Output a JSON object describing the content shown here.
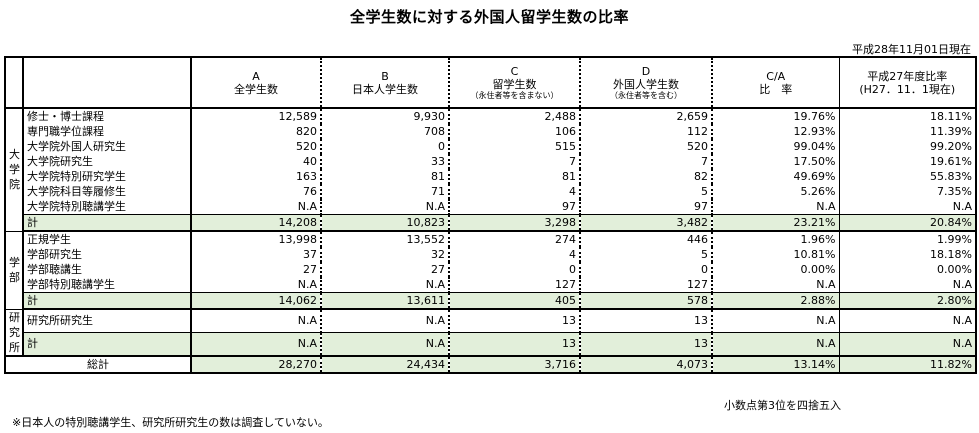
{
  "title": "全学生数に対する外国人留学生数の比率",
  "as_of": "平成28年11月01日現在",
  "rounding_note": "小数点第3位を四捨五入",
  "footnote": "※日本人の特別聴講学生、研究所研究生の数は調査していない。",
  "colors": {
    "total_fill": "#e2efda"
  },
  "chart_data": {
    "type": "table",
    "title": "全学生数に対する外国人留学生数の比率",
    "columns": [
      {
        "code": "A",
        "name": "全学生数",
        "sub": ""
      },
      {
        "code": "B",
        "name": "日本人学生数",
        "sub": ""
      },
      {
        "code": "C",
        "name": "留学生数",
        "sub": "（永住者等を含まない）"
      },
      {
        "code": "D",
        "name": "外国人学生数",
        "sub": "（永住者等を含む）"
      },
      {
        "code": "C/A",
        "name": "比　率",
        "sub": ""
      },
      {
        "code": "平成27年度比率",
        "name": "(H27．11．1現在)",
        "sub": ""
      }
    ],
    "groups": [
      {
        "label": [
          "大",
          "学",
          "院"
        ],
        "rows": [
          {
            "name": "修士・博士課程",
            "values": [
              "12,589",
              "9,930",
              "2,488",
              "2,659",
              "19.76%",
              "18.11%"
            ]
          },
          {
            "name": "専門職学位課程",
            "values": [
              "820",
              "708",
              "106",
              "112",
              "12.93%",
              "11.39%"
            ]
          },
          {
            "name": "大学院外国人研究生",
            "values": [
              "520",
              "0",
              "515",
              "520",
              "99.04%",
              "99.20%"
            ]
          },
          {
            "name": "大学院研究生",
            "values": [
              "40",
              "33",
              "7",
              "7",
              "17.50%",
              "19.61%"
            ]
          },
          {
            "name": "大学院特別研究学生",
            "values": [
              "163",
              "81",
              "81",
              "82",
              "49.69%",
              "55.83%"
            ]
          },
          {
            "name": "大学院科目等履修生",
            "values": [
              "76",
              "71",
              "4",
              "5",
              "5.26%",
              "7.35%"
            ]
          },
          {
            "name": "大学院特別聴講学生",
            "values": [
              "N.A",
              "N.A",
              "97",
              "97",
              "N.A",
              "N.A"
            ]
          }
        ],
        "total": {
          "name": "計",
          "values": [
            "14,208",
            "10,823",
            "3,298",
            "3,482",
            "23.21%",
            "20.84%"
          ]
        }
      },
      {
        "label": [
          "学",
          "部"
        ],
        "rows": [
          {
            "name": "正規学生",
            "values": [
              "13,998",
              "13,552",
              "274",
              "446",
              "1.96%",
              "1.99%"
            ]
          },
          {
            "name": "学部研究生",
            "values": [
              "37",
              "32",
              "4",
              "5",
              "10.81%",
              "18.18%"
            ]
          },
          {
            "name": "学部聴講生",
            "values": [
              "27",
              "27",
              "0",
              "0",
              "0.00%",
              "0.00%"
            ]
          },
          {
            "name": "学部特別聴講学生",
            "values": [
              "N.A",
              "N.A",
              "127",
              "127",
              "N.A",
              "N.A"
            ]
          }
        ],
        "total": {
          "name": "計",
          "values": [
            "14,062",
            "13,611",
            "405",
            "578",
            "2.88%",
            "2.80%"
          ]
        }
      },
      {
        "label": [
          "研",
          "究",
          "所"
        ],
        "rows": [
          {
            "name": "研究所研究生",
            "values": [
              "N.A",
              "N.A",
              "13",
              "13",
              "N.A",
              "N.A"
            ]
          }
        ],
        "total": {
          "name": "計",
          "values": [
            "N.A",
            "N.A",
            "13",
            "13",
            "N.A",
            "N.A"
          ]
        }
      }
    ],
    "grand_total": {
      "name": "総計",
      "values": [
        "28,270",
        "24,434",
        "3,716",
        "4,073",
        "13.14%",
        "11.82%"
      ]
    }
  }
}
